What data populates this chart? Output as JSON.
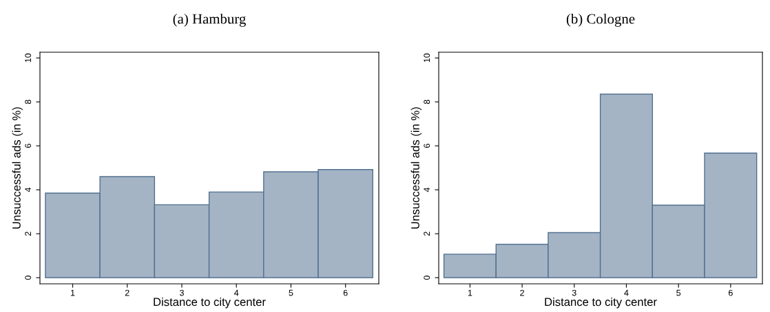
{
  "chart_data": [
    {
      "type": "histogram",
      "title": "(a) Hamburg",
      "xlabel": "Distance to city center",
      "ylabel": "Unsuccessful ads (in %)",
      "bins": [
        0.5,
        1.5,
        2.5,
        3.5,
        4.5,
        5.5,
        6.5
      ],
      "values": [
        3.85,
        4.6,
        3.32,
        3.9,
        4.82,
        4.92
      ],
      "color": "#a4b4c5",
      "xlim": [
        0.4,
        6.61
      ],
      "xticks": [
        1,
        2,
        3,
        4,
        5,
        6
      ],
      "ylim": [
        -0.28,
        10.26
      ],
      "yticks": [
        0,
        2,
        4,
        6,
        8,
        10
      ],
      "grid": false
    },
    {
      "type": "histogram",
      "title": "(b) Cologne",
      "xlabel": "Distance to city center",
      "ylabel": "Unsuccessful ads (in %)",
      "bins": [
        0.5,
        1.5,
        2.5,
        3.5,
        4.5,
        5.5,
        6.5
      ],
      "values": [
        1.07,
        1.52,
        2.05,
        8.35,
        3.3,
        5.67
      ],
      "color": "#a4b4c5",
      "xlim": [
        0.4,
        6.61
      ],
      "xticks": [
        1,
        2,
        3,
        4,
        5,
        6
      ],
      "ylim": [
        -0.28,
        10.26
      ],
      "yticks": [
        0,
        2,
        4,
        6,
        8,
        10
      ],
      "grid": false
    }
  ]
}
